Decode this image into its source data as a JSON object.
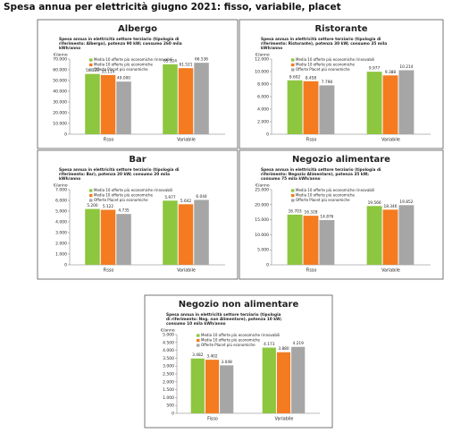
{
  "title": "Spesa annua per elettricità giugno 2021: fisso, variabile, placet",
  "chart_data": [
    {
      "type": "bar",
      "title": "Albergo",
      "subtitle": "Spesa annua in elettricità settore terziario (tipologia di riferimento: Albergo), potenza 90 kW; consumo 260 mila kWh/anno",
      "y_label": "€/anno",
      "categories": [
        "Fisso",
        "Variabile"
      ],
      "series": [
        {
          "name": "Media 10 offerte più economiche rinnovabili",
          "color": "#8dc63f",
          "values": [
            56128,
            65124
          ],
          "value_labels": [
            "56.128",
            "65.124"
          ]
        },
        {
          "name": "Media 10 offerte più economiche",
          "color": "#f47b20",
          "values": [
            55114,
            61521
          ],
          "value_labels": [
            "55.114",
            "61.521"
          ]
        },
        {
          "name": "Offerte Placet più economiche",
          "color": "#a6a6a6",
          "values": [
            49000,
            66536
          ],
          "value_labels": [
            "49.000",
            "66.536"
          ]
        }
      ],
      "ylim": [
        0,
        70000
      ],
      "yticks": [
        0,
        {
          "value": 10000,
          "label": "10.000"
        },
        {
          "value": 20000,
          "label": "20.000"
        },
        {
          "value": 30000,
          "label": "30.000"
        },
        {
          "value": 40000,
          "label": "40.000"
        },
        {
          "value": 50000,
          "label": "50.000"
        },
        {
          "value": 60000,
          "label": "60.000"
        },
        {
          "value": 70000,
          "label": "70.000"
        }
      ]
    },
    {
      "type": "bar",
      "title": "Ristorante",
      "subtitle": "Spesa annua in elettricità settore terziario (tipologia di riferimento: Ristorante), potenza 30 kW; consumo 35 mila kWh/anno",
      "y_label": "€/anno",
      "categories": [
        "Fisso",
        "Variabile"
      ],
      "series": [
        {
          "name": "Media 10 offerte più economiche rinnovabili",
          "color": "#8dc63f",
          "values": [
            8602,
            9977
          ],
          "value_labels": [
            "8.602",
            "9.977"
          ]
        },
        {
          "name": "Media 10 offerte più economiche",
          "color": "#f47b20",
          "values": [
            8458,
            9388
          ],
          "value_labels": [
            "8.458",
            "9.388"
          ]
        },
        {
          "name": "Offerte Placet più economiche",
          "color": "#a6a6a6",
          "values": [
            7798,
            10214
          ],
          "value_labels": [
            "7.798",
            "10.214"
          ]
        }
      ],
      "ylim": [
        0,
        12000
      ],
      "yticks": [
        0,
        {
          "value": 2000,
          "label": "2.000"
        },
        {
          "value": 4000,
          "label": "4.000"
        },
        {
          "value": 6000,
          "label": "6.000"
        },
        {
          "value": 8000,
          "label": "8.000"
        },
        {
          "value": 10000,
          "label": "10.000"
        },
        {
          "value": 12000,
          "label": "12.000"
        }
      ]
    },
    {
      "type": "bar",
      "title": "Bar",
      "subtitle": "Spesa annua in elettricità settore terziario (tipologia di riferimento: Bar), potenza 20 kW; consumo 20 mila kWh/anno",
      "y_label": "€/anno",
      "categories": [
        "Fisso",
        "Variabile"
      ],
      "series": [
        {
          "name": "Media 10 offerte più economiche rinnovabili",
          "color": "#8dc63f",
          "values": [
            5200,
            5977
          ],
          "value_labels": [
            "5.200",
            "5.977"
          ]
        },
        {
          "name": "Media 10 offerte più economiche",
          "color": "#f47b20",
          "values": [
            5122,
            5642
          ],
          "value_labels": [
            "5.122",
            "5.642"
          ]
        },
        {
          "name": "Offerte Placet più economiche",
          "color": "#a6a6a6",
          "values": [
            4735,
            6044
          ],
          "value_labels": [
            "4.735",
            "6.044"
          ]
        }
      ],
      "ylim": [
        0,
        7000
      ],
      "yticks": [
        0,
        {
          "value": 1000,
          "label": "1.000"
        },
        {
          "value": 2000,
          "label": "2.000"
        },
        {
          "value": 3000,
          "label": "3.000"
        },
        {
          "value": 4000,
          "label": "4.000"
        },
        {
          "value": 5000,
          "label": "5.000"
        },
        {
          "value": 6000,
          "label": "6.000"
        },
        {
          "value": 7000,
          "label": "7.000"
        }
      ]
    },
    {
      "type": "bar",
      "title": "Negozio alimentare",
      "subtitle": "Spesa annua in elettricità settore terziario (tipologia di riferimento: Negozio Alimentare), potenza 35 kW; consumo 75 mila kWh/anno",
      "y_label": "€/anno",
      "categories": [
        "Fisso",
        "Variabile"
      ],
      "series": [
        {
          "name": "Media 10 offerte più economiche rinnovabili",
          "color": "#8dc63f",
          "values": [
            16703,
            19566
          ],
          "value_labels": [
            "16.703",
            "19.566"
          ]
        },
        {
          "name": "Media 10 offerte più economiche",
          "color": "#f47b20",
          "values": [
            16328,
            18346
          ],
          "value_labels": [
            "16.328",
            "18.346"
          ]
        },
        {
          "name": "Offerte Placet più economiche",
          "color": "#a6a6a6",
          "values": [
            14876,
            19852
          ],
          "value_labels": [
            "14.876",
            "19.852"
          ]
        }
      ],
      "ylim": [
        0,
        25000
      ],
      "yticks": [
        0,
        {
          "value": 5000,
          "label": "5.000"
        },
        {
          "value": 10000,
          "label": "10.000"
        },
        {
          "value": 15000,
          "label": "15.000"
        },
        {
          "value": 20000,
          "label": "20.000"
        },
        {
          "value": 25000,
          "label": "25.000"
        }
      ]
    },
    {
      "type": "bar",
      "title": "Negozio non alimentare",
      "subtitle": "Spesa annua in elettricità settore terziario (tipologia di riferimento: Neg. non Alimentare), potenza 10 kW; consumo 10 mila kWh/anno",
      "y_label": "€/anno",
      "categories": [
        "Fisso",
        "Variabile"
      ],
      "series": [
        {
          "name": "Media 10 offerte più economiche rinnovabili",
          "color": "#8dc63f",
          "values": [
            3482,
            4173
          ],
          "value_labels": [
            "3.482",
            "4.173"
          ]
        },
        {
          "name": "Media 10 offerte più economiche",
          "color": "#f47b20",
          "values": [
            3402,
            3880
          ],
          "value_labels": [
            "3.402",
            "3.880"
          ]
        },
        {
          "name": "Offerte Placet più economiche",
          "color": "#a6a6a6",
          "values": [
            3048,
            4219
          ],
          "value_labels": [
            "3.048",
            "4.219"
          ]
        }
      ],
      "ylim": [
        0,
        5000
      ],
      "yticks": [
        0,
        500,
        {
          "value": 1000,
          "label": "1.000"
        },
        {
          "value": 1500,
          "label": "1.500"
        },
        {
          "value": 2000,
          "label": "2.000"
        },
        {
          "value": 2500,
          "label": "2.500"
        },
        {
          "value": 3000,
          "label": "3.000"
        },
        {
          "value": 3500,
          "label": "3.500"
        },
        {
          "value": 4000,
          "label": "4.000"
        },
        {
          "value": 4500,
          "label": "4.500"
        },
        {
          "value": 5000,
          "label": "5.000"
        }
      ]
    }
  ]
}
